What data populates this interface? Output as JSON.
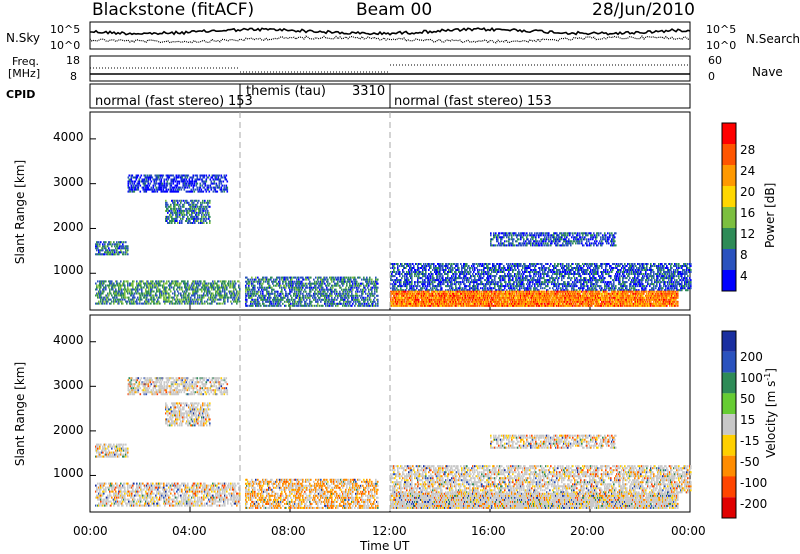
{
  "header": {
    "station": "Blackstone (fitACF)",
    "beam": "Beam 00",
    "date": "28/Jun/2010"
  },
  "top_panels": {
    "nsky_label": "N.Sky",
    "nsky_ticks": [
      "10^5",
      "10^0"
    ],
    "nsearch_label": "N.Search",
    "nsearch_ticks": [
      "10^5",
      "10^0"
    ],
    "freq_label": "Freq.",
    "freq_unit": "[MHz]",
    "freq_ticks": [
      "18",
      "8"
    ],
    "nave_label": "Nave",
    "nave_ticks": [
      "60",
      "0"
    ],
    "cpid_label": "CPID"
  },
  "cpid_segments": [
    {
      "name": "normal (fast stereo)",
      "id": "153",
      "start_hour": 0,
      "end_hour": 6
    },
    {
      "name": "themis (tau)",
      "id": "3310",
      "start_hour": 6,
      "end_hour": 12
    },
    {
      "name": "normal (fast stereo)",
      "id": "153",
      "start_hour": 12,
      "end_hour": 24
    }
  ],
  "x_axis": {
    "label": "Time UT",
    "ticks": [
      "00:00",
      "04:00",
      "08:00",
      "12:00",
      "16:00",
      "20:00",
      "00:00"
    ],
    "range_hours": [
      0,
      24
    ]
  },
  "y_axis": {
    "label": "Slant Range [km]",
    "ticks": [
      "1000",
      "2000",
      "3000",
      "4000"
    ],
    "range_km": [
      180,
      4600
    ]
  },
  "power_scale": {
    "label": "Power [dB]",
    "ticks": [
      "4",
      "8",
      "12",
      "16",
      "20",
      "24",
      "28"
    ],
    "colors": [
      "#0000ff",
      "#2a52be",
      "#2e8b57",
      "#7cbf3f",
      "#ffd700",
      "#ff9900",
      "#ff5500",
      "#ff0000"
    ]
  },
  "velocity_scale": {
    "label": "Velocity [m s",
    "label_sup": "-1",
    "label_end": "]",
    "ticks": [
      "200",
      "100",
      "50",
      "15",
      "-15",
      "-50",
      "-100",
      "-200"
    ],
    "colors": [
      "#1a2fa0",
      "#2a52be",
      "#2e8b57",
      "#66cc33",
      "#c8c8c8",
      "#ffd000",
      "#ff8c00",
      "#ff4500",
      "#e00000"
    ]
  },
  "chart_data": {
    "type": "heatmap",
    "title": "Blackstone (fitACF)",
    "xlabel": "Time UT",
    "ylabel": "Slant Range [km]",
    "xlim_hours": [
      0,
      24
    ],
    "ylim_km": [
      180,
      4600
    ],
    "panels": [
      "Power [dB]",
      "Velocity [m s-1]"
    ],
    "power_regions": [
      {
        "t0": 0.2,
        "t1": 6.0,
        "r0": 300,
        "r1": 800,
        "db": 10
      },
      {
        "t0": 0.2,
        "t1": 1.5,
        "r0": 1400,
        "r1": 1700,
        "db": 8
      },
      {
        "t0": 3.0,
        "t1": 4.8,
        "r0": 2100,
        "r1": 2600,
        "db": 8
      },
      {
        "t0": 1.5,
        "t1": 5.5,
        "r0": 2800,
        "r1": 3200,
        "db": 4
      },
      {
        "t0": 6.2,
        "t1": 11.5,
        "r0": 250,
        "r1": 900,
        "db": 8
      },
      {
        "t0": 12.0,
        "t1": 24.0,
        "r0": 600,
        "r1": 1200,
        "db": 6
      },
      {
        "t0": 12.0,
        "t1": 23.5,
        "r0": 250,
        "r1": 600,
        "db": 24
      },
      {
        "t0": 16.0,
        "t1": 21.0,
        "r0": 1600,
        "r1": 1900,
        "db": 6
      }
    ]
  }
}
